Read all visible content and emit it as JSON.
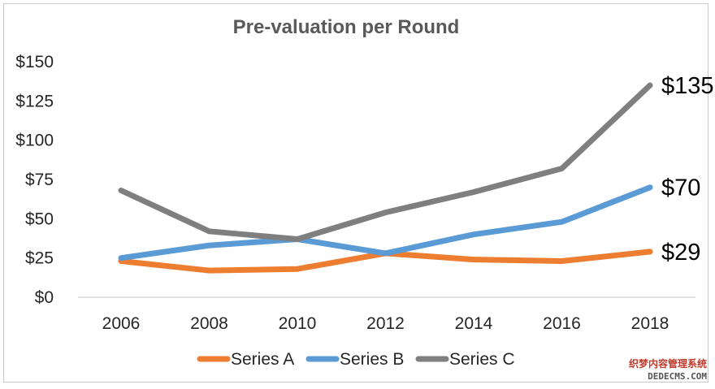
{
  "chart_data": {
    "type": "line",
    "title": "Pre-valuation per Round",
    "xlabel": "",
    "ylabel": "",
    "x": [
      "2006",
      "2008",
      "2010",
      "2012",
      "2014",
      "2016",
      "2018"
    ],
    "yticks": [
      "$0",
      "$25",
      "$50",
      "$75",
      "$100",
      "$125",
      "$150"
    ],
    "ylim": [
      0,
      150
    ],
    "grid": false,
    "legend_position": "bottom",
    "series": [
      {
        "name": "Series A",
        "color": "#ed7d31",
        "values": [
          23,
          17,
          18,
          28,
          24,
          23,
          29
        ],
        "end_label": "$29"
      },
      {
        "name": "Series B",
        "color": "#5b9bd5",
        "values": [
          25,
          33,
          37,
          28,
          40,
          48,
          70
        ],
        "end_label": "$70"
      },
      {
        "name": "Series C",
        "color": "#7f7f7f",
        "values": [
          68,
          42,
          37,
          54,
          67,
          82,
          135
        ],
        "end_label": "$135"
      }
    ]
  },
  "watermark": {
    "line1": "织梦内容管理系统",
    "line2": "DEDECMS.COM"
  }
}
